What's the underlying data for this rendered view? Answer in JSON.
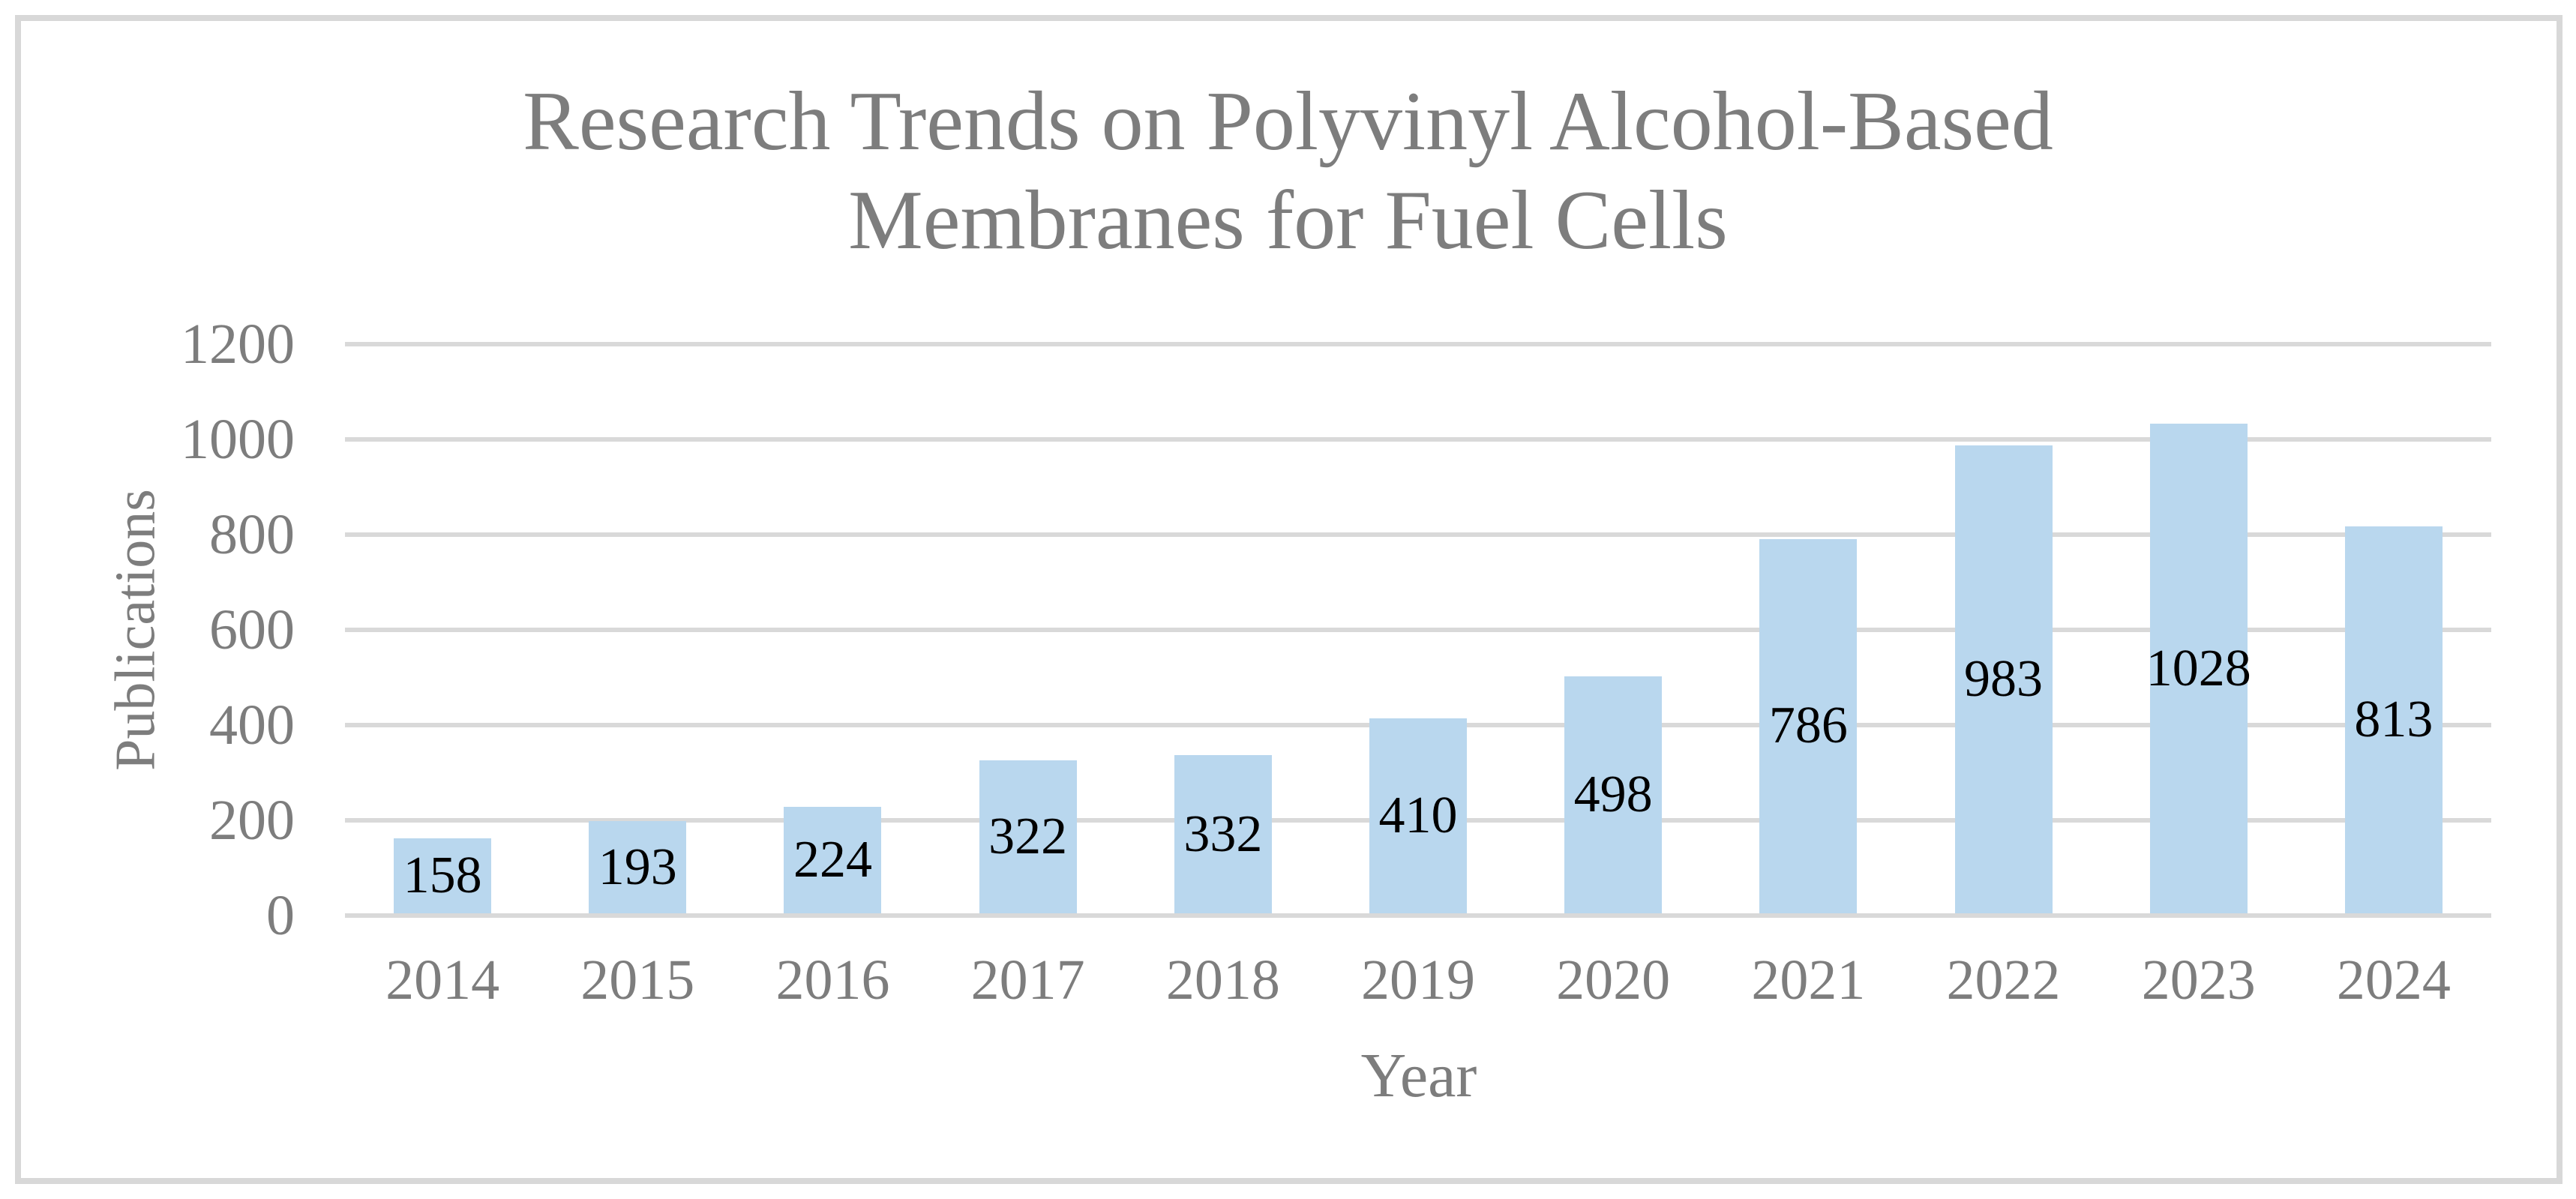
{
  "chart_data": {
    "type": "bar",
    "title": "Research Trends on Polyvinyl Alcohol-Based Membranes for Fuel Cells",
    "title_lines": [
      "Research Trends on Polyvinyl Alcohol-Based",
      "Membranes for Fuel Cells"
    ],
    "xlabel": "Year",
    "ylabel": "Publications",
    "categories": [
      "2014",
      "2015",
      "2016",
      "2017",
      "2018",
      "2019",
      "2020",
      "2021",
      "2022",
      "2023",
      "2024"
    ],
    "values": [
      158,
      193,
      224,
      322,
      332,
      410,
      498,
      786,
      983,
      1028,
      813
    ],
    "yticks": [
      0,
      200,
      400,
      600,
      800,
      1000,
      1200
    ],
    "ylim": [
      0,
      1200
    ],
    "grid": true,
    "legend": "none",
    "data_label_position": "center"
  },
  "colors": {
    "bar_fill": "#B9D7EE",
    "gridline": "#D9D9D9",
    "chart_border": "#D8D8D8",
    "axis_text": "#7D7D7D",
    "title_text": "#7D7D7D",
    "data_label_text": "#000000",
    "background": "#FFFFFF"
  }
}
